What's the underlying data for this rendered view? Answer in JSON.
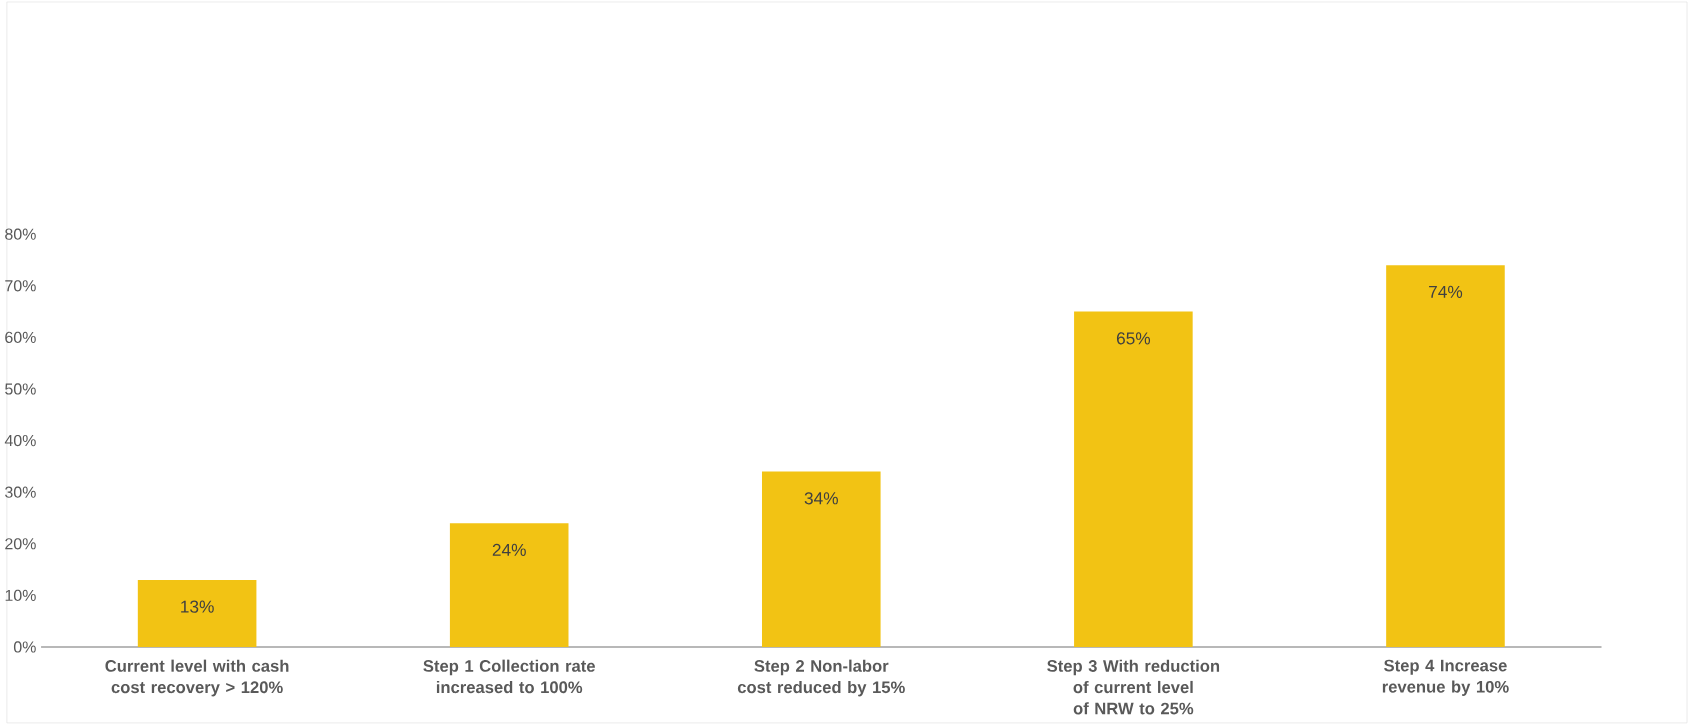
{
  "chart_data": {
    "type": "bar",
    "categories": [
      "Current level with cash cost recovery > 120%",
      "Step 1 Collection rate increased to 100%",
      "Step 2 Non-labor cost reduced by 15%",
      "Step 3 With reduction of current level of NRW to 25%",
      "Step 4 Increase revenue by 10%"
    ],
    "values": [
      13,
      24,
      34,
      65,
      74
    ],
    "value_labels": [
      "13%",
      "24%",
      "34%",
      "65%",
      "74%"
    ],
    "color": "#f2c314",
    "ylim": [
      0,
      80
    ],
    "yticks": [
      {
        "value": 0,
        "label": "0%"
      },
      {
        "value": 10,
        "label": "10%"
      },
      {
        "value": 20,
        "label": "20%"
      },
      {
        "value": 30,
        "label": "30%"
      },
      {
        "value": 40,
        "label": "40%"
      },
      {
        "value": 50,
        "label": "50%"
      },
      {
        "value": 60,
        "label": "60%"
      },
      {
        "value": 70,
        "label": "70%"
      },
      {
        "value": 80,
        "label": "80%"
      }
    ]
  }
}
